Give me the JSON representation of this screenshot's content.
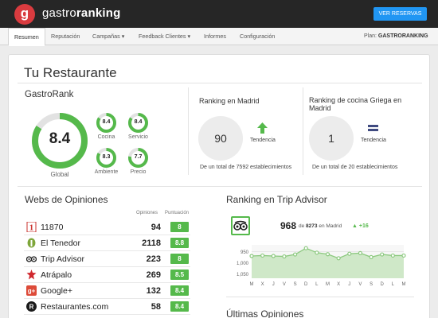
{
  "header": {
    "logo_letter": "g",
    "brand_light": "gastro",
    "brand_bold": "ranking",
    "cta_label": "VER RESERVAS"
  },
  "nav": {
    "items": [
      {
        "label": "Resumen",
        "active": true
      },
      {
        "label": "Reputación",
        "active": false
      },
      {
        "label": "Campañas",
        "active": false,
        "dropdown": true
      },
      {
        "label": "Feedback Clientes",
        "active": false,
        "dropdown": true
      },
      {
        "label": "Informes",
        "active": false
      },
      {
        "label": "Configuración",
        "active": false
      }
    ],
    "plan_label": "Plan:",
    "plan_value": "GASTRORANKING"
  },
  "page": {
    "title": "Tu Restaurante"
  },
  "gastrorank": {
    "title": "GastroRank",
    "global": {
      "label": "Global",
      "value": "8.4",
      "fill": 0.84
    },
    "subs": [
      {
        "label": "Cocina",
        "value": "8.4",
        "fill": 0.84
      },
      {
        "label": "Servicio",
        "value": "8.4",
        "fill": 0.84
      },
      {
        "label": "Ambiente",
        "value": "8.3",
        "fill": 0.83
      },
      {
        "label": "Precio",
        "value": "7.7",
        "fill": 0.77
      }
    ],
    "color": "#55b94b",
    "track_color": "#e2e2e2"
  },
  "ranking_madrid": {
    "title": "Ranking en Madrid",
    "position": "90",
    "trend_label": "Tendencia",
    "trend": "up",
    "total_text": "De un total de 7592 establecimientos"
  },
  "ranking_cocina": {
    "title": "Ranking de cocina Griega en Madrid",
    "position": "1",
    "trend_label": "Tendencia",
    "trend": "equal",
    "total_text": "De un total de 20 establecimientos"
  },
  "webs": {
    "title": "Webs de Opiniones",
    "col_opiniones": "Opiniones",
    "col_puntuacion": "Puntuación",
    "rows": [
      {
        "name": "11870",
        "count": "94",
        "score": "8",
        "icon": "11870-icon"
      },
      {
        "name": "El Tenedor",
        "count": "2118",
        "score": "8.8",
        "icon": "eltenedor-icon"
      },
      {
        "name": "Trip Advisor",
        "count": "223",
        "score": "8",
        "icon": "tripadvisor-icon"
      },
      {
        "name": "Atrápalo",
        "count": "269",
        "score": "8.5",
        "icon": "atrapalo-icon"
      },
      {
        "name": "Google+",
        "count": "132",
        "score": "8.4",
        "icon": "googleplus-icon"
      },
      {
        "name": "Restaurantes.com",
        "count": "58",
        "score": "8.4",
        "icon": "restaurantes-icon"
      }
    ]
  },
  "tripadvisor": {
    "title": "Ranking en Trip Advisor",
    "rank": "968",
    "of_text": "de",
    "total": "8273",
    "city_text": "en Madrid",
    "delta": "+16"
  },
  "latest_opinions": {
    "title": "Últimas Opiniones"
  },
  "chart_data": {
    "type": "area",
    "x": [
      "M",
      "X",
      "J",
      "V",
      "S",
      "D",
      "L",
      "M",
      "X",
      "J",
      "V",
      "S",
      "D",
      "L",
      "M"
    ],
    "series": [
      {
        "values": [
          970,
          968,
          970,
          972,
          963,
          935,
          955,
          962,
          980,
          960,
          957,
          975,
          963,
          968,
          968
        ]
      }
    ],
    "y_ticks": [
      "950",
      "1,000",
      "1,050"
    ],
    "ylim": [
      1070,
      920
    ],
    "y_reversed": true,
    "grid": true,
    "color": "#8cc97f",
    "fill_color": "#cfe8c8"
  }
}
